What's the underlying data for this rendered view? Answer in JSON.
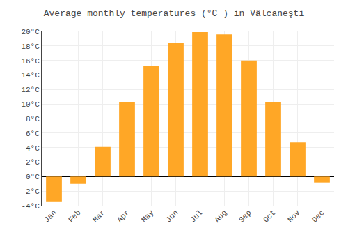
{
  "chart_data": {
    "type": "bar",
    "title": "Average monthly temperatures (°C ) in Vâlcăneşti",
    "categories": [
      "Jan",
      "Feb",
      "Mar",
      "Apr",
      "May",
      "Jun",
      "Jul",
      "Aug",
      "Sep",
      "Oct",
      "Nov",
      "Dec"
    ],
    "values": [
      -3.5,
      -1.0,
      4.1,
      10.2,
      15.2,
      18.4,
      19.9,
      19.6,
      16.0,
      10.3,
      4.7,
      -0.8
    ],
    "color": "#FFA726",
    "ylim": [
      -4,
      20
    ],
    "yticks": [
      {
        "value": -4,
        "label": "-4°C"
      },
      {
        "value": -2,
        "label": "-2°C"
      },
      {
        "value": 0,
        "label": "0°C"
      },
      {
        "value": 2,
        "label": "2°C"
      },
      {
        "value": 4,
        "label": "4°C"
      },
      {
        "value": 6,
        "label": "6°C"
      },
      {
        "value": 8,
        "label": "8°C"
      },
      {
        "value": 10,
        "label": "10°C"
      },
      {
        "value": 12,
        "label": "12°C"
      },
      {
        "value": 14,
        "label": "14°C"
      },
      {
        "value": 16,
        "label": "16°C"
      },
      {
        "value": 18,
        "label": "18°C"
      },
      {
        "value": 20,
        "label": "20°C"
      }
    ],
    "grid": true
  }
}
